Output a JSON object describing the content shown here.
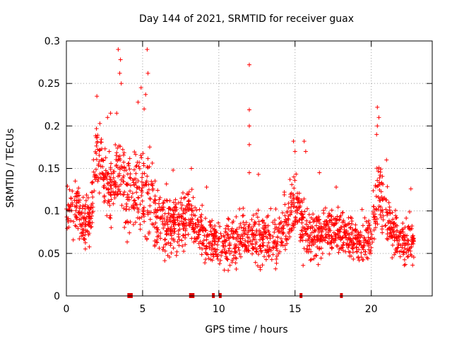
{
  "chart_data": {
    "type": "scatter",
    "title": "Day 144 of 2021, SRMTID for receiver guax",
    "xlabel": "GPS time / hours",
    "ylabel": "SRMTID / TECUs",
    "xlim": [
      0,
      24
    ],
    "ylim": [
      0,
      0.3
    ],
    "xticks": [
      0,
      5,
      10,
      15,
      20
    ],
    "xtick_labels": [
      "0",
      "5",
      "10",
      "15",
      "20"
    ],
    "yticks": [
      0,
      0.05,
      0.1,
      0.15,
      0.2,
      0.25,
      0.3
    ],
    "ytick_labels": [
      "0",
      "0.05",
      "0.1",
      "0.15",
      "0.2",
      "0.25",
      "0.3"
    ],
    "grid": true,
    "marker": "+",
    "color": "#ff0000",
    "flag_color": "#dd0000",
    "profile": [
      {
        "x": 0.0,
        "y": 0.095,
        "spread": 0.025
      },
      {
        "x": 0.5,
        "y": 0.11,
        "spread": 0.03
      },
      {
        "x": 1.0,
        "y": 0.09,
        "spread": 0.025
      },
      {
        "x": 1.5,
        "y": 0.09,
        "spread": 0.025
      },
      {
        "x": 2.0,
        "y": 0.17,
        "spread": 0.04
      },
      {
        "x": 2.5,
        "y": 0.14,
        "spread": 0.035
      },
      {
        "x": 3.0,
        "y": 0.12,
        "spread": 0.04
      },
      {
        "x": 3.5,
        "y": 0.15,
        "spread": 0.05
      },
      {
        "x": 4.0,
        "y": 0.11,
        "spread": 0.045
      },
      {
        "x": 4.5,
        "y": 0.13,
        "spread": 0.045
      },
      {
        "x": 5.0,
        "y": 0.13,
        "spread": 0.05
      },
      {
        "x": 5.5,
        "y": 0.12,
        "spread": 0.045
      },
      {
        "x": 6.0,
        "y": 0.09,
        "spread": 0.035
      },
      {
        "x": 7.0,
        "y": 0.08,
        "spread": 0.03
      },
      {
        "x": 8.0,
        "y": 0.095,
        "spread": 0.03
      },
      {
        "x": 9.0,
        "y": 0.07,
        "spread": 0.025
      },
      {
        "x": 10.0,
        "y": 0.06,
        "spread": 0.025
      },
      {
        "x": 11.0,
        "y": 0.065,
        "spread": 0.025
      },
      {
        "x": 12.0,
        "y": 0.07,
        "spread": 0.03
      },
      {
        "x": 13.0,
        "y": 0.065,
        "spread": 0.025
      },
      {
        "x": 14.0,
        "y": 0.07,
        "spread": 0.03
      },
      {
        "x": 15.0,
        "y": 0.11,
        "spread": 0.035
      },
      {
        "x": 15.5,
        "y": 0.08,
        "spread": 0.03
      },
      {
        "x": 16.0,
        "y": 0.07,
        "spread": 0.025
      },
      {
        "x": 17.0,
        "y": 0.075,
        "spread": 0.025
      },
      {
        "x": 18.0,
        "y": 0.08,
        "spread": 0.025
      },
      {
        "x": 19.0,
        "y": 0.06,
        "spread": 0.025
      },
      {
        "x": 20.0,
        "y": 0.07,
        "spread": 0.025
      },
      {
        "x": 20.5,
        "y": 0.13,
        "spread": 0.04
      },
      {
        "x": 21.0,
        "y": 0.09,
        "spread": 0.03
      },
      {
        "x": 22.0,
        "y": 0.06,
        "spread": 0.025
      },
      {
        "x": 22.8,
        "y": 0.07,
        "spread": 0.025
      }
    ],
    "spikes": [
      {
        "x": 3.4,
        "y": 0.29
      },
      {
        "x": 3.55,
        "y": 0.278
      },
      {
        "x": 3.5,
        "y": 0.262
      },
      {
        "x": 3.6,
        "y": 0.25
      },
      {
        "x": 5.3,
        "y": 0.29
      },
      {
        "x": 5.35,
        "y": 0.262
      },
      {
        "x": 5.2,
        "y": 0.237
      },
      {
        "x": 4.9,
        "y": 0.245
      },
      {
        "x": 4.7,
        "y": 0.228
      },
      {
        "x": 5.1,
        "y": 0.22
      },
      {
        "x": 2.0,
        "y": 0.235
      },
      {
        "x": 2.9,
        "y": 0.215
      },
      {
        "x": 2.7,
        "y": 0.21
      },
      {
        "x": 3.3,
        "y": 0.215
      },
      {
        "x": 12.0,
        "y": 0.272
      },
      {
        "x": 12.0,
        "y": 0.219
      },
      {
        "x": 12.0,
        "y": 0.2
      },
      {
        "x": 12.0,
        "y": 0.178
      },
      {
        "x": 12.0,
        "y": 0.145
      },
      {
        "x": 14.9,
        "y": 0.182
      },
      {
        "x": 15.0,
        "y": 0.17
      },
      {
        "x": 15.6,
        "y": 0.182
      },
      {
        "x": 15.7,
        "y": 0.17
      },
      {
        "x": 20.4,
        "y": 0.222
      },
      {
        "x": 20.5,
        "y": 0.21
      },
      {
        "x": 20.4,
        "y": 0.2
      },
      {
        "x": 20.35,
        "y": 0.19
      },
      {
        "x": 21.0,
        "y": 0.16
      },
      {
        "x": 22.6,
        "y": 0.126
      },
      {
        "x": 9.2,
        "y": 0.128
      },
      {
        "x": 7.0,
        "y": 0.148
      },
      {
        "x": 8.2,
        "y": 0.15
      },
      {
        "x": 16.6,
        "y": 0.145
      },
      {
        "x": 12.6,
        "y": 0.143
      },
      {
        "x": 17.7,
        "y": 0.128
      }
    ],
    "flag_intervals": [
      [
        4.0,
        4.35
      ],
      [
        8.05,
        8.4
      ],
      [
        9.55,
        9.7
      ],
      [
        10.0,
        10.15
      ],
      [
        15.3,
        15.45
      ],
      [
        17.95,
        18.1
      ]
    ]
  }
}
